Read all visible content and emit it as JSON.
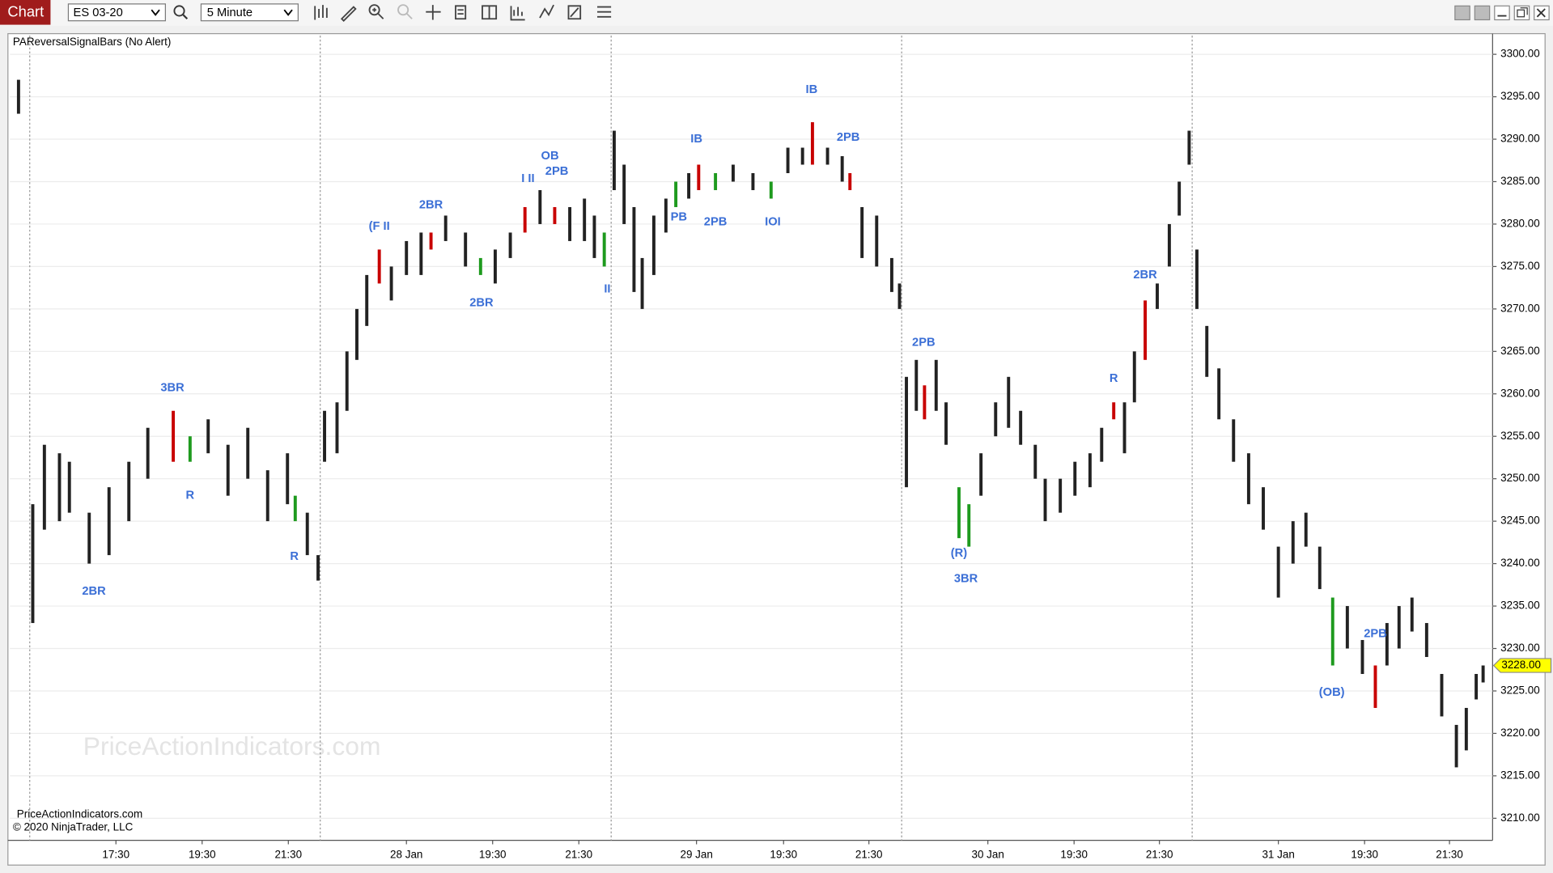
{
  "toolbar": {
    "tab": "Chart",
    "instrument": "ES 03-20",
    "interval": "5 Minute"
  },
  "chart_data": {
    "type": "ohlc",
    "indicator_label": "PAReversalSignalBars (No Alert)",
    "watermark": "PriceActionIndicators.com",
    "footer": [
      "PriceActionIndicators.com",
      "© 2020 NinjaTrader, LLC"
    ],
    "xlim": [
      0,
      34.4
    ],
    "ylim": [
      3207.4,
      3302.2
    ],
    "grid": true,
    "xticks": [
      {
        "value": 2.46,
        "label": "17:30"
      },
      {
        "value": 4.46,
        "label": "19:30"
      },
      {
        "value": 6.46,
        "label": "21:30"
      },
      {
        "value": 9.2,
        "label": "28 Jan"
      },
      {
        "value": 11.2,
        "label": "19:30"
      },
      {
        "value": 13.2,
        "label": "21:30"
      },
      {
        "value": 15.93,
        "label": "29 Jan"
      },
      {
        "value": 17.95,
        "label": "19:30"
      },
      {
        "value": 19.93,
        "label": "21:30"
      },
      {
        "value": 22.69,
        "label": "30 Jan"
      },
      {
        "value": 24.69,
        "label": "19:30"
      },
      {
        "value": 26.67,
        "label": "21:30"
      },
      {
        "value": 29.43,
        "label": "31 Jan"
      },
      {
        "value": 31.43,
        "label": "19:30"
      },
      {
        "value": 33.4,
        "label": "21:30"
      }
    ],
    "yticks": [
      {
        "value": 3210,
        "label": "3210.00"
      },
      {
        "value": 3215,
        "label": "3215.00"
      },
      {
        "value": 3220,
        "label": "3220.00"
      },
      {
        "value": 3225,
        "label": "3225.00"
      },
      {
        "value": 3230,
        "label": "3230.00"
      },
      {
        "value": 3235,
        "label": "3235.00"
      },
      {
        "value": 3240,
        "label": "3240.00"
      },
      {
        "value": 3245,
        "label": "3245.00"
      },
      {
        "value": 3250,
        "label": "3250.00"
      },
      {
        "value": 3255,
        "label": "3255.00"
      },
      {
        "value": 3260,
        "label": "3260.00"
      },
      {
        "value": 3265,
        "label": "3265.00"
      },
      {
        "value": 3270,
        "label": "3270.00"
      },
      {
        "value": 3275,
        "label": "3275.00"
      },
      {
        "value": 3280,
        "label": "3280.00"
      },
      {
        "value": 3285,
        "label": "3285.00"
      },
      {
        "value": 3290,
        "label": "3290.00"
      },
      {
        "value": 3295,
        "label": "3295.00"
      },
      {
        "value": 3300,
        "label": "3300.00"
      }
    ],
    "session_breaks": [
      0.46,
      7.2,
      13.95,
      20.69,
      27.43
    ],
    "last_price": {
      "value": 3228,
      "label": "3228.00"
    },
    "x": [
      0.2,
      0.53,
      0.8,
      1.15,
      1.38,
      1.84,
      2.3,
      2.76,
      3.2,
      3.79,
      4.18,
      4.6,
      5.06,
      5.52,
      5.98,
      6.44,
      6.62,
      6.9,
      7.15,
      7.3,
      7.59,
      7.82,
      8.05,
      8.28,
      8.57,
      8.85,
      9.2,
      9.54,
      9.77,
      10.11,
      10.57,
      10.92,
      11.26,
      11.61,
      11.95,
      12.3,
      12.64,
      12.99,
      13.33,
      13.56,
      13.79,
      14.02,
      14.25,
      14.48,
      14.67,
      14.94,
      15.22,
      15.45,
      15.75,
      15.98,
      16.37,
      16.78,
      17.24,
      17.66,
      18.05,
      18.39,
      18.62,
      18.97,
      19.31,
      19.49,
      19.77,
      20.11,
      20.46,
      20.64,
      20.8,
      21.03,
      21.22,
      21.49,
      21.72,
      22.02,
      22.25,
      22.53,
      22.87,
      23.17,
      23.45,
      23.79,
      24.02,
      24.37,
      24.71,
      25.06,
      25.33,
      25.61,
      25.86,
      26.09,
      26.34,
      26.62,
      26.9,
      27.13,
      27.36,
      27.54,
      27.77,
      28.05,
      28.39,
      28.74,
      29.08,
      29.43,
      29.77,
      30.07,
      30.39,
      30.69,
      31.03,
      31.38,
      31.68,
      31.95,
      32.23,
      32.53,
      32.87,
      33.22,
      33.56,
      33.79,
      34.02,
      34.18
    ],
    "high": [
      3297,
      3247,
      3254,
      3253,
      3252,
      3246,
      3249,
      3252,
      3256,
      3258,
      3255,
      3257,
      3254,
      3256,
      3251,
      3253,
      3248,
      3246,
      3241,
      3258,
      3259,
      3265,
      3270,
      3274,
      3277,
      3275,
      3278,
      3279,
      3279,
      3281,
      3279,
      3276,
      3277,
      3279,
      3282,
      3284,
      3282,
      3282,
      3283,
      3281,
      3279,
      3291,
      3287,
      3282,
      3276,
      3281,
      3283,
      3285,
      3286,
      3287,
      3286,
      3287,
      3286,
      3285,
      3289,
      3289,
      3292,
      3289,
      3288,
      3286,
      3282,
      3281,
      3276,
      3273,
      3262,
      3264,
      3261,
      3264,
      3259,
      3249,
      3247,
      3253,
      3259,
      3262,
      3258,
      3254,
      3250,
      3250,
      3252,
      3253,
      3256,
      3259,
      3259,
      3265,
      3271,
      3273,
      3280,
      3285,
      3291,
      3277,
      3268,
      3263,
      3257,
      3253,
      3249,
      3242,
      3245,
      3246,
      3242,
      3236,
      3235,
      3231,
      3228,
      3233,
      3235,
      3236,
      3233,
      3227,
      3221,
      3223,
      3227,
      3228
    ],
    "low": [
      3293,
      3233,
      3244,
      3245,
      3246,
      3240,
      3241,
      3245,
      3250,
      3252,
      3252,
      3253,
      3248,
      3250,
      3245,
      3247,
      3245,
      3241,
      3238,
      3252,
      3253,
      3258,
      3264,
      3268,
      3273,
      3271,
      3274,
      3274,
      3277,
      3278,
      3275,
      3274,
      3273,
      3276,
      3279,
      3280,
      3280,
      3278,
      3278,
      3276,
      3275,
      3284,
      3280,
      3272,
      3270,
      3274,
      3279,
      3282,
      3283,
      3284,
      3284,
      3285,
      3284,
      3283,
      3286,
      3287,
      3287,
      3287,
      3285,
      3284,
      3276,
      3275,
      3272,
      3270,
      3249,
      3258,
      3257,
      3258,
      3254,
      3243,
      3242,
      3248,
      3255,
      3256,
      3254,
      3250,
      3245,
      3246,
      3248,
      3249,
      3252,
      3257,
      3253,
      3259,
      3264,
      3270,
      3275,
      3281,
      3287,
      3270,
      3262,
      3257,
      3252,
      3247,
      3244,
      3236,
      3240,
      3242,
      3237,
      3228,
      3230,
      3227,
      3223,
      3228,
      3230,
      3232,
      3229,
      3222,
      3216,
      3218,
      3224,
      3226
    ],
    "bar_colors": [
      "#222",
      "#222",
      "#222",
      "#222",
      "#222",
      "#222",
      "#222",
      "#222",
      "#222",
      "#c80000",
      "#1e9a1e",
      "#222",
      "#222",
      "#222",
      "#222",
      "#222",
      "#1e9a1e",
      "#222",
      "#222",
      "#222",
      "#222",
      "#222",
      "#222",
      "#222",
      "#c80000",
      "#222",
      "#222",
      "#222",
      "#c80000",
      "#222",
      "#222",
      "#1e9a1e",
      "#222",
      "#222",
      "#c80000",
      "#222",
      "#c80000",
      "#222",
      "#222",
      "#222",
      "#1e9a1e",
      "#222",
      "#222",
      "#222",
      "#222",
      "#222",
      "#222",
      "#1e9a1e",
      "#222",
      "#c80000",
      "#1e9a1e",
      "#222",
      "#222",
      "#1e9a1e",
      "#222",
      "#222",
      "#c80000",
      "#222",
      "#222",
      "#c80000",
      "#222",
      "#222",
      "#222",
      "#222",
      "#222",
      "#222",
      "#c80000",
      "#222",
      "#222",
      "#1e9a1e",
      "#1e9a1e",
      "#222",
      "#222",
      "#222",
      "#222",
      "#222",
      "#222",
      "#222",
      "#222",
      "#222",
      "#222",
      "#c80000",
      "#222",
      "#222",
      "#c80000",
      "#222",
      "#222",
      "#222",
      "#222",
      "#222",
      "#222",
      "#222",
      "#222",
      "#222",
      "#222",
      "#222",
      "#222",
      "#222",
      "#222",
      "#1e9a1e",
      "#222",
      "#222",
      "#c80000",
      "#222",
      "#222",
      "#222",
      "#222",
      "#222",
      "#222",
      "#222",
      "#222",
      "#222"
    ],
    "annotation_color": "#3b6fd6",
    "annotations": [
      {
        "text": "3BR",
        "x": 3.77,
        "y": 3260.7
      },
      {
        "text": "R",
        "x": 4.18,
        "y": 3248.0
      },
      {
        "text": "2BR",
        "x": 1.95,
        "y": 3236.7
      },
      {
        "text": "R",
        "x": 6.6,
        "y": 3240.8
      },
      {
        "text": "(F II",
        "x": 8.57,
        "y": 3279.7
      },
      {
        "text": "2BR",
        "x": 9.77,
        "y": 3282.2
      },
      {
        "text": "2BR",
        "x": 10.94,
        "y": 3270.7
      },
      {
        "text": "I II",
        "x": 12.02,
        "y": 3285.3
      },
      {
        "text": "OB",
        "x": 12.53,
        "y": 3288.0
      },
      {
        "text": "2PB",
        "x": 12.69,
        "y": 3286.2
      },
      {
        "text": "II",
        "x": 13.86,
        "y": 3272.3
      },
      {
        "text": "IB",
        "x": 15.93,
        "y": 3290.0
      },
      {
        "text": "PB",
        "x": 15.52,
        "y": 3280.8
      },
      {
        "text": "2PB",
        "x": 16.37,
        "y": 3280.2
      },
      {
        "text": "IOI",
        "x": 17.7,
        "y": 3280.2
      },
      {
        "text": "IB",
        "x": 18.6,
        "y": 3295.8
      },
      {
        "text": "2PB",
        "x": 19.45,
        "y": 3290.2
      },
      {
        "text": "2PB",
        "x": 21.2,
        "y": 3266.0
      },
      {
        "text": "(R)",
        "x": 22.02,
        "y": 3241.2
      },
      {
        "text": "3BR",
        "x": 22.18,
        "y": 3238.2
      },
      {
        "text": "R",
        "x": 25.61,
        "y": 3261.8
      },
      {
        "text": "2BR",
        "x": 26.34,
        "y": 3274.0
      },
      {
        "text": "2PB",
        "x": 31.68,
        "y": 3231.7
      },
      {
        "text": "(OB)",
        "x": 30.67,
        "y": 3224.8
      }
    ]
  }
}
